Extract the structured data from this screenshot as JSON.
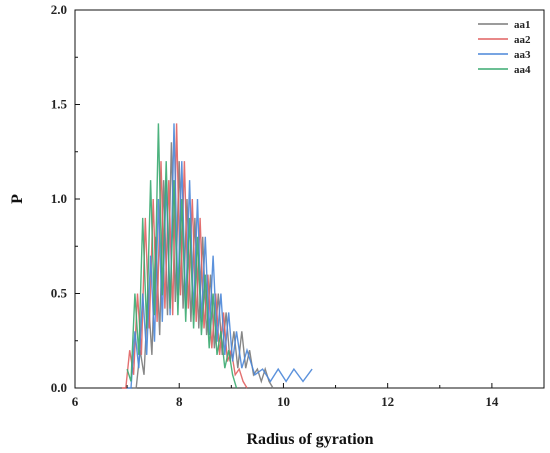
{
  "chart_data": {
    "type": "line",
    "title": "",
    "xlabel": "Radius of gyration",
    "ylabel": "P",
    "xlim": [
      6,
      15
    ],
    "ylim": [
      0,
      2.0
    ],
    "xticks": [
      6,
      8,
      10,
      12,
      14
    ],
    "yticks": [
      0.0,
      0.5,
      1.0,
      1.5,
      2.0
    ],
    "xtick_labels": [
      "6",
      "8",
      "10",
      "12",
      "14"
    ],
    "ytick_labels": [
      "0.0",
      "0.5",
      "1.0",
      "1.5",
      "2.0"
    ],
    "grid": false,
    "legend_position": "top-right",
    "series": [
      {
        "name": "aa1",
        "color": "#7a7a7a",
        "x": [
          7.1,
          7.25,
          7.4,
          7.55,
          7.7,
          7.85,
          8.0,
          8.15,
          8.3,
          8.45,
          8.6,
          8.75,
          8.9,
          9.05,
          9.2,
          9.35,
          9.5,
          9.65,
          9.8
        ],
        "y": [
          0.0,
          0.2,
          0.5,
          0.8,
          1.1,
          1.3,
          1.2,
          1.0,
          0.9,
          0.8,
          0.6,
          0.5,
          0.4,
          0.3,
          0.3,
          0.2,
          0.1,
          0.1,
          0.0
        ]
      },
      {
        "name": "aa2",
        "color": "#e06060",
        "x": [
          6.9,
          7.05,
          7.2,
          7.35,
          7.5,
          7.65,
          7.8,
          7.95,
          8.1,
          8.25,
          8.4,
          8.55,
          8.7,
          8.85,
          9.0,
          9.15,
          9.3
        ],
        "y": [
          0.0,
          0.2,
          0.5,
          0.9,
          1.0,
          1.2,
          1.1,
          1.4,
          1.2,
          1.0,
          0.9,
          0.6,
          0.5,
          0.4,
          0.2,
          0.1,
          0.0
        ]
      },
      {
        "name": "aa3",
        "color": "#4a86d8",
        "x": [
          7.0,
          7.15,
          7.3,
          7.45,
          7.6,
          7.75,
          7.9,
          8.05,
          8.2,
          8.35,
          8.5,
          8.65,
          8.8,
          8.95,
          9.1,
          9.3,
          9.6,
          9.9,
          10.2,
          10.55
        ],
        "y": [
          0.0,
          0.3,
          0.5,
          0.7,
          1.0,
          1.1,
          1.4,
          1.2,
          1.1,
          1.0,
          0.8,
          0.7,
          0.5,
          0.4,
          0.3,
          0.2,
          0.1,
          0.1,
          0.1,
          0.1
        ]
      },
      {
        "name": "aa4",
        "color": "#3aaa70",
        "x": [
          7.0,
          7.15,
          7.3,
          7.45,
          7.6,
          7.75,
          7.9,
          8.05,
          8.2,
          8.35,
          8.5,
          8.65,
          8.8,
          8.95,
          9.1
        ],
        "y": [
          0.1,
          0.5,
          0.9,
          1.1,
          1.4,
          1.2,
          1.1,
          1.0,
          0.9,
          0.8,
          0.6,
          0.5,
          0.3,
          0.2,
          0.0
        ]
      }
    ]
  }
}
